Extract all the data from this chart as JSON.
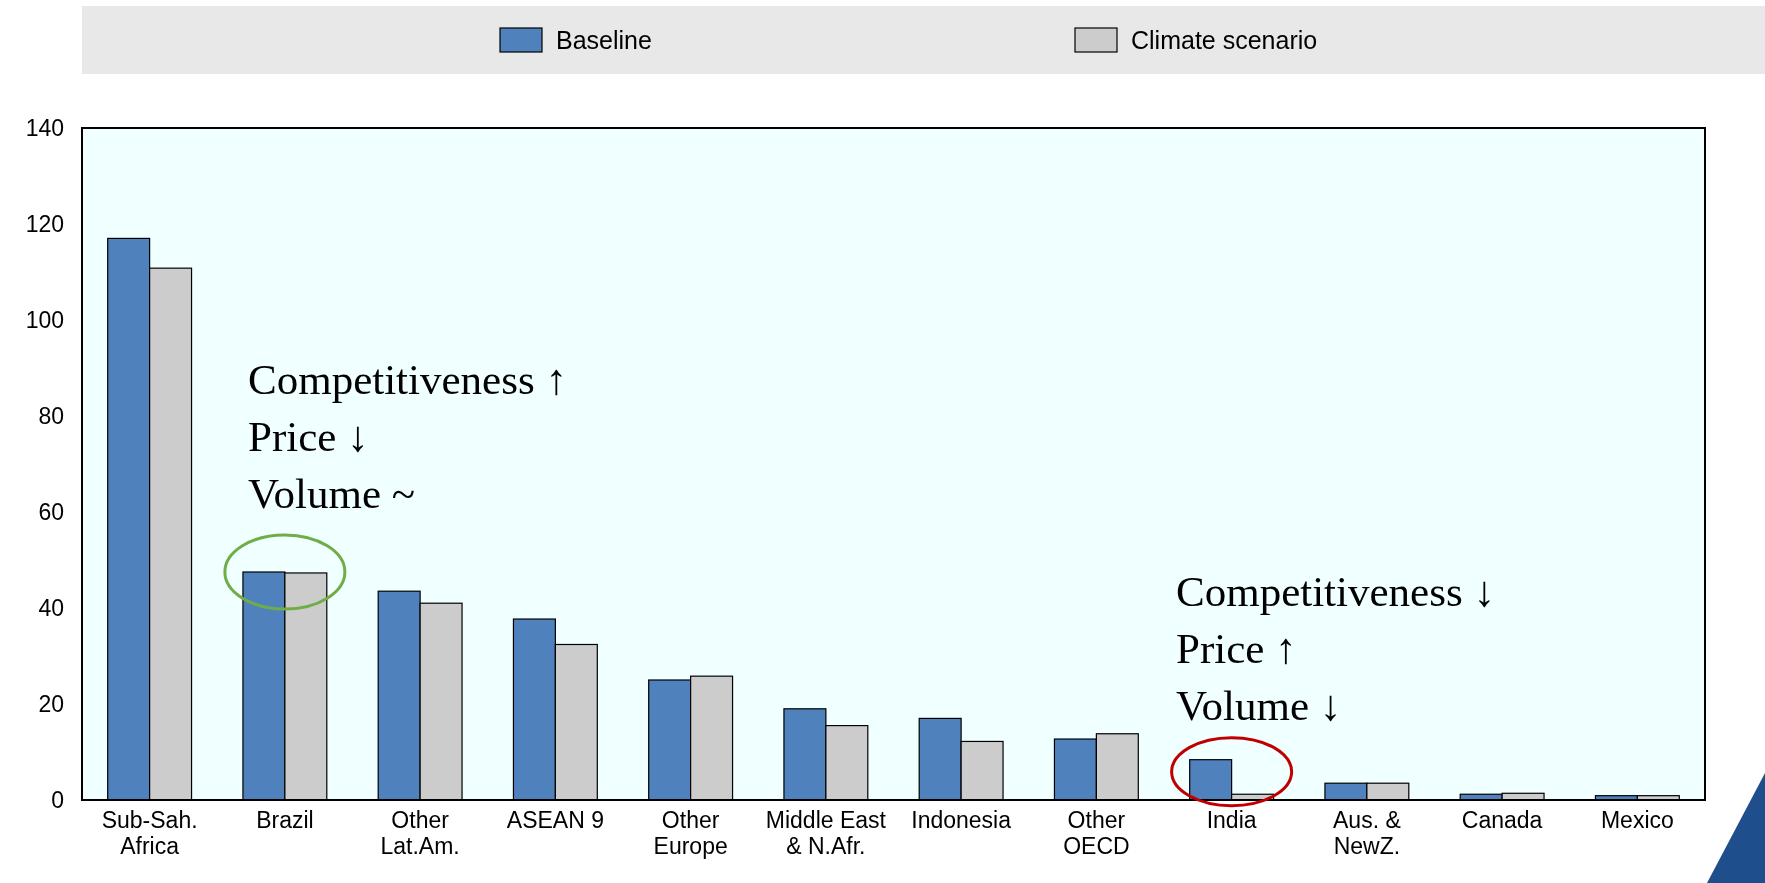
{
  "chart_data": {
    "type": "bar",
    "categories": [
      "Sub-Sah. Africa",
      "Brazil",
      "Other Lat.Am.",
      "ASEAN 9",
      "Other Europe",
      "Middle East & N.Afr.",
      "Indonesia",
      "Other OECD",
      "India",
      "Aus. & NewZ.",
      "Canada",
      "Mexico"
    ],
    "series": [
      {
        "name": "Baseline",
        "color": "#4f81bd",
        "values": [
          117,
          47.5,
          43.5,
          37.7,
          25,
          19,
          17,
          12.7,
          8.4,
          3.5,
          1.2,
          0.9
        ]
      },
      {
        "name": "Climate scenario",
        "color": "#cccccc",
        "values": [
          110.8,
          47.3,
          41,
          32.4,
          25.8,
          15.5,
          12.2,
          13.8,
          1.2,
          3.5,
          1.4,
          0.9
        ]
      }
    ],
    "ylim": [
      0,
      140
    ],
    "yticks": [
      0,
      20,
      40,
      60,
      80,
      100,
      120,
      140
    ],
    "legend": "top",
    "annotations": [
      "Competitiveness ↑\nPrice ↓\nVolume ~",
      "Competitiveness ↓\nPrice ↑\nVolume ↓"
    ]
  }
}
